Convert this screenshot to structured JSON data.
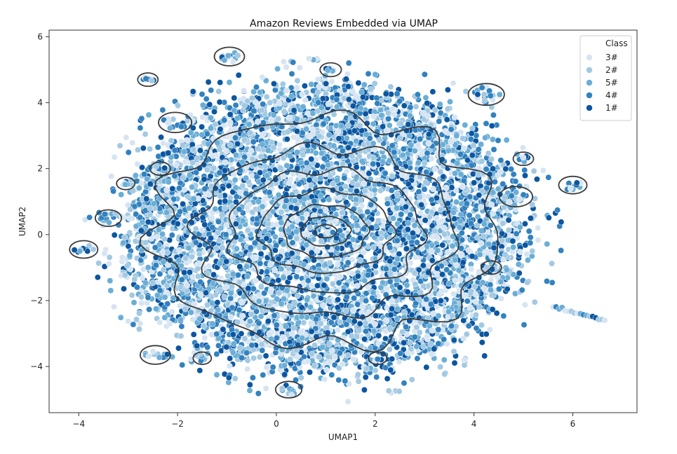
{
  "chart_data": {
    "type": "scatter",
    "title": "Amazon Reviews Embedded via UMAP",
    "xlabel": "UMAP1",
    "ylabel": "UMAP2",
    "xlim": [
      -4.6,
      7.3
    ],
    "ylim": [
      -5.4,
      6.2
    ],
    "x_ticks": [
      -4,
      -2,
      0,
      2,
      4,
      6
    ],
    "y_ticks": [
      -4,
      -2,
      0,
      2,
      4,
      6
    ],
    "grid": false,
    "legend": {
      "title": "Class",
      "placement": "top-right",
      "entries": [
        {
          "label": "3#",
          "color": "#d6e4f2"
        },
        {
          "label": "2#",
          "color": "#a3c9e2"
        },
        {
          "label": "5#",
          "color": "#6aaed6"
        },
        {
          "label": "4#",
          "color": "#3282bf"
        },
        {
          "label": "1#",
          "color": "#0c56a0"
        }
      ]
    },
    "series_colors": {
      "3#": "#d6e4f2",
      "2#": "#a3c9e2",
      "5#": "#6aaed6",
      "4#": "#3282bf",
      "1#": "#0c56a0"
    },
    "main_cloud": {
      "center": [
        1.0,
        0.15
      ],
      "radius_x": 4.0,
      "radius_y": 4.3,
      "approx_points": 6000
    },
    "kde_contour_center": [
      1.0,
      0.1
    ],
    "kde_contour_levels": [
      {
        "rx": 0.22,
        "ry": 0.2
      },
      {
        "rx": 0.5,
        "ry": 0.45
      },
      {
        "rx": 0.85,
        "ry": 0.8
      },
      {
        "rx": 1.35,
        "ry": 1.25
      },
      {
        "rx": 1.95,
        "ry": 1.85
      },
      {
        "rx": 2.6,
        "ry": 2.55
      },
      {
        "rx": 3.45,
        "ry": 3.45
      }
    ],
    "outer_island_clusters": [
      {
        "x": -0.95,
        "y": 5.4,
        "r": 0.22
      },
      {
        "x": -2.6,
        "y": 4.7,
        "r": 0.12
      },
      {
        "x": 1.1,
        "y": 5.0,
        "r": 0.13
      },
      {
        "x": 4.25,
        "y": 4.25,
        "r": 0.28
      },
      {
        "x": -2.05,
        "y": 3.4,
        "r": 0.25
      },
      {
        "x": -2.35,
        "y": 2.0,
        "r": 0.12
      },
      {
        "x": -3.05,
        "y": 1.55,
        "r": 0.1
      },
      {
        "x": -3.4,
        "y": 0.5,
        "r": 0.18
      },
      {
        "x": -3.9,
        "y": -0.45,
        "r": 0.2
      },
      {
        "x": 5.0,
        "y": 2.3,
        "r": 0.12
      },
      {
        "x": 6.0,
        "y": 1.5,
        "r": 0.2
      },
      {
        "x": 4.85,
        "y": 1.15,
        "r": 0.25
      },
      {
        "x": 4.35,
        "y": -1.0,
        "r": 0.12
      },
      {
        "x": -2.45,
        "y": -3.65,
        "r": 0.22
      },
      {
        "x": -1.5,
        "y": -3.75,
        "r": 0.1
      },
      {
        "x": 0.25,
        "y": -4.7,
        "r": 0.18
      },
      {
        "x": 2.05,
        "y": -3.75,
        "r": 0.1
      }
    ],
    "streak_segment": {
      "from": [
        5.6,
        -2.2
      ],
      "to": [
        6.65,
        -2.6
      ]
    }
  }
}
